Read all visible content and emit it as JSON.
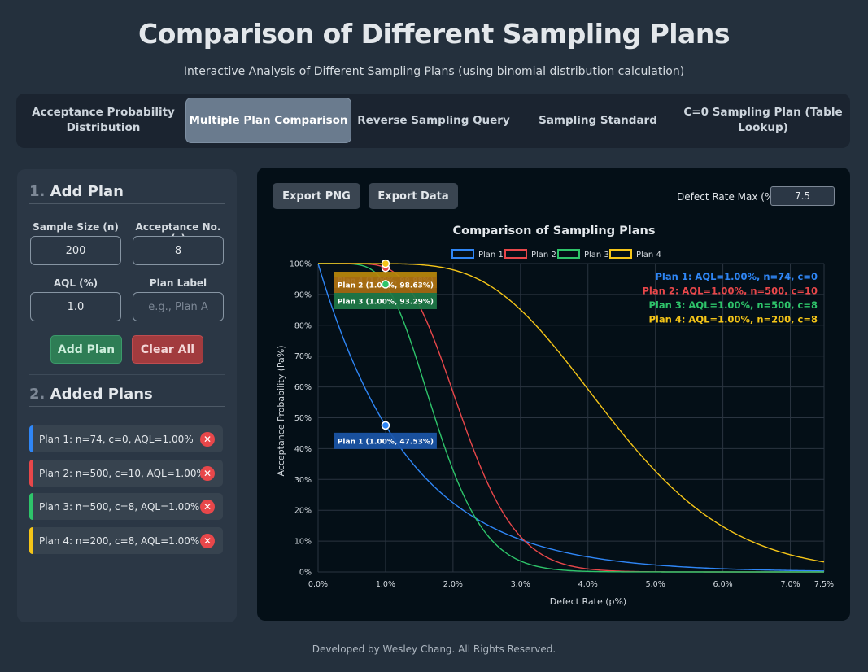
{
  "header": {
    "title": "Comparison of Different Sampling Plans",
    "subtitle": "Interactive Analysis of Different Sampling Plans (using binomial distribution calculation)"
  },
  "tabs": [
    {
      "line1": "Acceptance Probability",
      "line2": "Distribution",
      "active": false
    },
    {
      "line1": "Multiple Plan Comparison",
      "line2": "",
      "active": true
    },
    {
      "line1": "Reverse Sampling Query",
      "line2": "",
      "active": false
    },
    {
      "line1": "Sampling Standard",
      "line2": "",
      "active": false
    },
    {
      "line1": "C=0 Sampling Plan (Table",
      "line2": "Lookup)",
      "active": false
    }
  ],
  "sidebar": {
    "add_num": "1.",
    "add_title": "Add Plan",
    "sample_size_label": "Sample Size (n)",
    "sample_size_value": "200",
    "acceptance_label": "Acceptance No. (c)",
    "acceptance_value": "8",
    "aql_label": "AQL (%)",
    "aql_value": "1.0",
    "plan_label_label": "Plan Label",
    "plan_label_placeholder": "e.g., Plan A",
    "add_button": "Add Plan",
    "clear_button": "Clear All",
    "added_num": "2.",
    "added_title": "Added Plans",
    "plans": [
      {
        "text": "Plan 1: n=74, c=0, AQL=1.00%",
        "color": "#2f86f6"
      },
      {
        "text": "Plan 2: n=500, c=10, AQL=1.00%",
        "color": "#e8474a"
      },
      {
        "text": "Plan 3: n=500, c=8, AQL=1.00%",
        "color": "#2ec46a"
      },
      {
        "text": "Plan 4: n=200, c=8, AQL=1.00%",
        "color": "#f5c518"
      }
    ],
    "delete_glyph": "✕"
  },
  "toolbar": {
    "export_png": "Export PNG",
    "export_data": "Export Data",
    "max_label": "Defect Rate Max (%):",
    "max_value": "7.5"
  },
  "chart_data": {
    "type": "line",
    "title": "Comparison of Sampling Plans",
    "xlabel": "Defect Rate (p%)",
    "ylabel": "Acceptance Probability (Pa%)",
    "xlim": [
      0,
      7.5
    ],
    "ylim": [
      0,
      100
    ],
    "x_ticks": [
      "0.0%",
      "1.0%",
      "2.0%",
      "3.0%",
      "4.0%",
      "5.0%",
      "6.0%",
      "7.0%",
      "7.5%"
    ],
    "y_ticks": [
      "0%",
      "10%",
      "20%",
      "30%",
      "40%",
      "50%",
      "60%",
      "70%",
      "80%",
      "90%",
      "100%"
    ],
    "grid": true,
    "legend_position": "top-center",
    "series": [
      {
        "name": "Plan 1",
        "n": 74,
        "c": 0,
        "color": "#2f86f6",
        "aql": 1.0,
        "pa_at_aql": 47.53,
        "info": "Plan 1: AQL=1.00%, n=74, c=0",
        "annotation": "Plan 1 (1.00%, 47.53%)"
      },
      {
        "name": "Plan 2",
        "n": 500,
        "c": 10,
        "color": "#e8474a",
        "aql": 1.0,
        "pa_at_aql": 98.63,
        "info": "Plan 2: AQL=1.00%, n=500, c=10",
        "annotation": "Plan 2 (1.00%, 98.63%)"
      },
      {
        "name": "Plan 3",
        "n": 500,
        "c": 8,
        "color": "#2ec46a",
        "aql": 1.0,
        "pa_at_aql": 93.29,
        "info": "Plan 3: AQL=1.00%, n=500, c=8",
        "annotation": "Plan 3 (1.00%, 93.29%)"
      },
      {
        "name": "Plan 4",
        "n": 200,
        "c": 8,
        "color": "#f5c518",
        "aql": 1.0,
        "pa_at_aql": 99.98,
        "info": "Plan 4: AQL=1.00%, n=200, c=8",
        "annotation": "Plan 4 (1.00%, 99.98%)"
      }
    ]
  },
  "footer": "Developed by Wesley Chang. All Rights Reserved."
}
